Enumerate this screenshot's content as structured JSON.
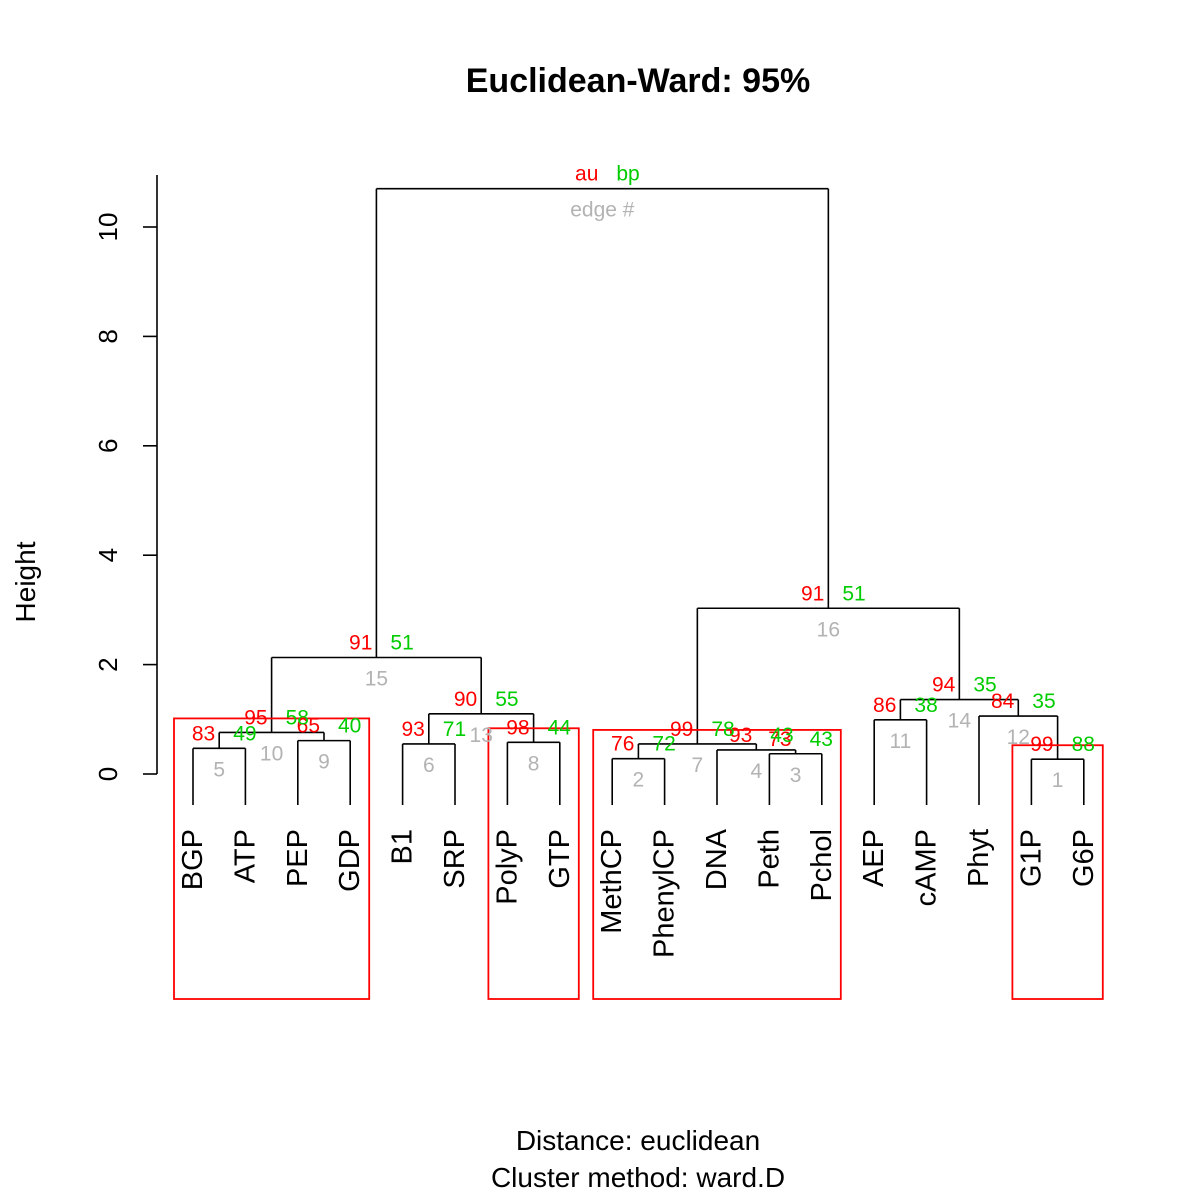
{
  "colors": {
    "au": "#FF0000",
    "bp": "#00CC00",
    "edge": "#B3B3B3",
    "box": "#FF0000"
  },
  "chart_data": {
    "type": "dendrogram",
    "title": "Euclidean-Ward: 95%",
    "subtitle_lines": [
      "Distance:  euclidean",
      "Cluster method: ward.D"
    ],
    "ylabel": "Height",
    "ylim": [
      0,
      11
    ],
    "yticks": [
      "0",
      "2",
      "4",
      "6",
      "8",
      "10"
    ],
    "legend": {
      "au": "au",
      "bp": "bp",
      "edge": "edge #"
    },
    "leaves": [
      "BGP",
      "ATP",
      "PEP",
      "GDP",
      "B1",
      "SRP",
      "PolyP",
      "GTP",
      "MethCP",
      "PhenylCP",
      "DNA",
      "Peth",
      "Pchol",
      "AEP",
      "cAMP",
      "Phyt",
      "G1P",
      "G6P"
    ],
    "merges": [
      {
        "edge": "1",
        "height": 0.27,
        "left": "G1P",
        "right": "G6P",
        "au": "99",
        "bp": "88"
      },
      {
        "edge": "2",
        "height": 0.28,
        "left": "MethCP",
        "right": "PhenylCP",
        "au": "76",
        "bp": "72"
      },
      {
        "edge": "3",
        "height": 0.37,
        "left": "Peth",
        "right": "Pchol",
        "au": "73",
        "bp": "43"
      },
      {
        "edge": "4",
        "height": 0.44,
        "left": "DNA",
        "right": "3",
        "au": "93",
        "bp": "43"
      },
      {
        "edge": "5",
        "height": 0.47,
        "left": "BGP",
        "right": "ATP",
        "au": "83",
        "bp": "49"
      },
      {
        "edge": "6",
        "height": 0.55,
        "left": "B1",
        "right": "SRP",
        "au": "93",
        "bp": "71"
      },
      {
        "edge": "7",
        "height": 0.55,
        "left": "2",
        "right": "4",
        "au": "99",
        "bp": "78"
      },
      {
        "edge": "8",
        "height": 0.58,
        "left": "PolyP",
        "right": "GTP",
        "au": "98",
        "bp": "44"
      },
      {
        "edge": "9",
        "height": 0.61,
        "left": "PEP",
        "right": "GDP",
        "au": "65",
        "bp": "40"
      },
      {
        "edge": "10",
        "height": 0.76,
        "left": "5",
        "right": "9",
        "au": "95",
        "bp": "58"
      },
      {
        "edge": "11",
        "height": 0.99,
        "left": "AEP",
        "right": "cAMP",
        "au": "86",
        "bp": "38"
      },
      {
        "edge": "12",
        "height": 1.06,
        "left": "Phyt",
        "right": "1",
        "au": "84",
        "bp": "35"
      },
      {
        "edge": "13",
        "height": 1.1,
        "left": "6",
        "right": "8",
        "au": "90",
        "bp": "55"
      },
      {
        "edge": "14",
        "height": 1.36,
        "left": "11",
        "right": "12",
        "au": "94",
        "bp": "35"
      },
      {
        "edge": "15",
        "height": 2.13,
        "left": "10",
        "right": "13",
        "au": "91",
        "bp": "51"
      },
      {
        "edge": "16",
        "height": 3.03,
        "left": "7",
        "right": "14",
        "au": "91",
        "bp": "51"
      },
      {
        "edge": "17",
        "height": 10.7,
        "left": "15",
        "right": "16",
        "au": "au",
        "bp": "bp",
        "edge_label": "edge #"
      }
    ],
    "highlighted_clusters": [
      [
        "BGP",
        "ATP",
        "PEP",
        "GDP"
      ],
      [
        "PolyP",
        "GTP"
      ],
      [
        "MethCP",
        "PhenylCP",
        "DNA",
        "Peth",
        "Pchol"
      ],
      [
        "G1P",
        "G6P"
      ]
    ]
  }
}
